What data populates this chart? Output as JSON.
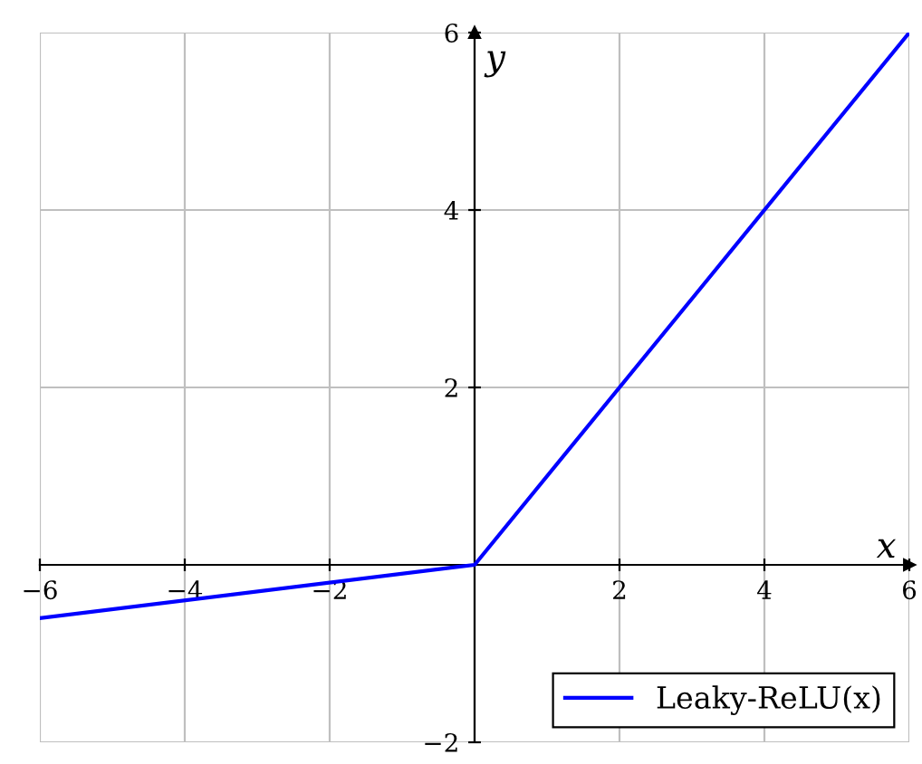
{
  "chart_data": {
    "type": "line",
    "xlabel": "x",
    "ylabel": "y",
    "x": [
      -6,
      0,
      6
    ],
    "series": [
      {
        "name": "Leaky-ReLU(x)",
        "color": "#0000ff",
        "values": [
          -0.6,
          0,
          6
        ]
      }
    ],
    "xlim": [
      -6,
      6
    ],
    "ylim": [
      -2,
      6
    ],
    "xticks": [
      {
        "value": -6,
        "label": "−6"
      },
      {
        "value": -4,
        "label": "−4"
      },
      {
        "value": -2,
        "label": "−2"
      },
      2,
      4,
      6
    ],
    "yticks": [
      {
        "value": -2,
        "label": "−2"
      },
      2,
      4,
      6
    ],
    "grid": true,
    "legend": "bottom right",
    "line_style": "solid",
    "marker": "none"
  }
}
